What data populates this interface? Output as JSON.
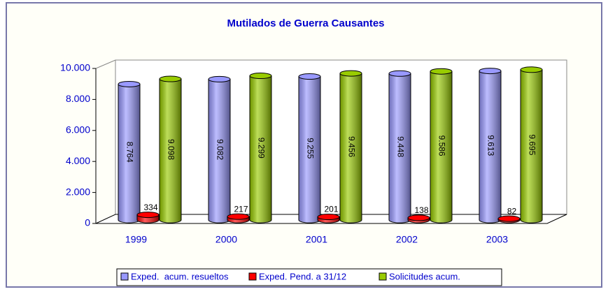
{
  "chart_data": {
    "type": "bar",
    "title": "Mutilados de Guerra Causantes",
    "categories": [
      "1999",
      "2000",
      "2001",
      "2002",
      "2003"
    ],
    "series": [
      {
        "name": "Exped.  acum. resueltos",
        "color": "#9999ff",
        "values": [
          8764,
          9082,
          9255,
          9448,
          9613
        ],
        "value_labels": [
          "8.764",
          "9.082",
          "9.255",
          "9.448",
          "9.613"
        ]
      },
      {
        "name": "Exped. Pend. a 31/12",
        "color": "#ff0000",
        "values": [
          334,
          217,
          201,
          138,
          82
        ]
      },
      {
        "name": "Solicitudes acum.",
        "color": "#99cc00",
        "values": [
          9098,
          9299,
          9456,
          9586,
          9695
        ],
        "value_labels": [
          "9.098",
          "9.299",
          "9.456",
          "9.586",
          "9.695"
        ]
      }
    ],
    "ylim": [
      0,
      10000
    ],
    "yticks": [
      0,
      {
        "value": 2000,
        "label": "2.000"
      },
      {
        "value": 4000,
        "label": "4.000"
      },
      {
        "value": 6000,
        "label": "6.000"
      },
      {
        "value": 8000,
        "label": "8.000"
      },
      {
        "value": 10000,
        "label": "10.000"
      }
    ],
    "legend": "bottom"
  }
}
